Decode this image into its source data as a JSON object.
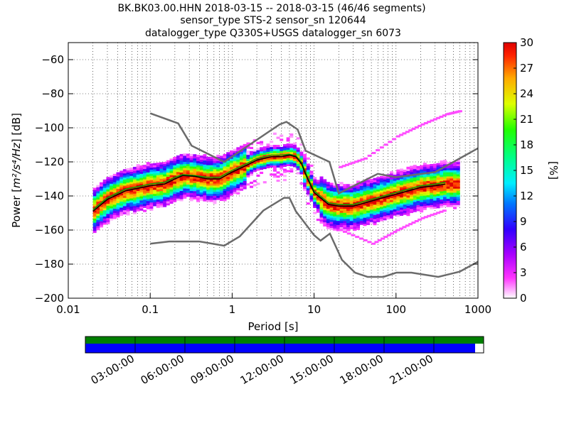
{
  "chart_data": {
    "type": "heatmap",
    "title_lines": [
      "BK.BK03.00.HHN   2018-03-15 -- 2018-03-15  (46/46 segments)",
      "sensor_type STS-2 sensor_sn 120644",
      "datalogger_type Q330S+USGS datalogger_sn 6073"
    ],
    "xlabel_prefix": "Period [s]",
    "ylabel_prefix": "Power [",
    "ylabel_math": "m²/s⁴/Hz",
    "ylabel_suffix": "] [dB]",
    "x_scale": "log",
    "xlim": [
      0.01,
      1000
    ],
    "ylim": [
      -200,
      -50
    ],
    "x_ticks": [
      "0.01",
      "0.1",
      "1",
      "10",
      "100",
      "1000"
    ],
    "y_ticks": [
      "−60",
      "−80",
      "−100",
      "−120",
      "−140",
      "−160",
      "−180",
      "−200"
    ],
    "colorbar": {
      "label": "[%]",
      "range": [
        0,
        30
      ],
      "ticks": [
        "0",
        "3",
        "6",
        "9",
        "12",
        "15",
        "18",
        "21",
        "24",
        "27",
        "30"
      ]
    },
    "nlnm": [
      [
        0.1,
        -168
      ],
      [
        0.17,
        -166.7
      ],
      [
        0.4,
        -166.7
      ],
      [
        0.8,
        -169.2
      ],
      [
        1.24,
        -163.7
      ],
      [
        2.4,
        -148.6
      ],
      [
        4.3,
        -141.1
      ],
      [
        5.0,
        -141.1
      ],
      [
        6.0,
        -149.0
      ],
      [
        10.0,
        -163.0
      ],
      [
        12.0,
        -166.2
      ],
      [
        15.6,
        -162.1
      ],
      [
        21.9,
        -177.5
      ],
      [
        31.6,
        -185.0
      ],
      [
        45.0,
        -187.5
      ],
      [
        70.0,
        -187.5
      ],
      [
        101,
        -185.0
      ],
      [
        154,
        -185.0
      ],
      [
        328,
        -187.5
      ],
      [
        600,
        -184.4
      ],
      [
        1000,
        -178.6
      ]
    ],
    "nhnm": [
      [
        0.1,
        -91.5
      ],
      [
        0.22,
        -97.4
      ],
      [
        0.32,
        -110.5
      ],
      [
        0.8,
        -120.0
      ],
      [
        3.8,
        -98.0
      ],
      [
        4.6,
        -96.5
      ],
      [
        6.3,
        -101.0
      ],
      [
        7.9,
        -113.5
      ],
      [
        15.4,
        -120.0
      ],
      [
        20.0,
        -138.5
      ],
      [
        60,
        -127.0
      ],
      [
        100,
        -129.0
      ],
      [
        300,
        -126.0
      ],
      [
        1000,
        -112.0
      ]
    ],
    "mode_curve": [
      [
        0.02,
        -149
      ],
      [
        0.03,
        -142
      ],
      [
        0.05,
        -137
      ],
      [
        0.08,
        -135
      ],
      [
        0.1,
        -134
      ],
      [
        0.15,
        -133
      ],
      [
        0.2,
        -130
      ],
      [
        0.25,
        -128
      ],
      [
        0.35,
        -128.5
      ],
      [
        0.5,
        -130
      ],
      [
        0.7,
        -130
      ],
      [
        1,
        -126
      ],
      [
        1.5,
        -122
      ],
      [
        2,
        -119
      ],
      [
        3,
        -117
      ],
      [
        4,
        -117
      ],
      [
        5,
        -116
      ],
      [
        6,
        -117
      ],
      [
        7,
        -121
      ],
      [
        8,
        -128
      ],
      [
        10,
        -138
      ],
      [
        15,
        -145
      ],
      [
        20,
        -146
      ],
      [
        30,
        -146
      ],
      [
        50,
        -143
      ],
      [
        70,
        -141
      ],
      [
        100,
        -139
      ],
      [
        200,
        -135
      ],
      [
        300,
        -134
      ],
      [
        400,
        -133
      ]
    ],
    "mean_curve": [
      [
        0.02,
        -148
      ],
      [
        0.03,
        -141
      ],
      [
        0.05,
        -136
      ],
      [
        0.08,
        -134
      ],
      [
        0.1,
        -133
      ],
      [
        0.15,
        -132
      ],
      [
        0.2,
        -129
      ],
      [
        0.25,
        -127.5
      ],
      [
        0.35,
        -128
      ],
      [
        0.5,
        -129
      ],
      [
        0.7,
        -129
      ],
      [
        1,
        -125
      ],
      [
        1.5,
        -121
      ],
      [
        2,
        -118
      ],
      [
        3,
        -116
      ],
      [
        4,
        -116
      ],
      [
        5,
        -115.5
      ],
      [
        6,
        -116.5
      ],
      [
        7,
        -120
      ],
      [
        8,
        -127
      ],
      [
        10,
        -137
      ],
      [
        15,
        -144
      ],
      [
        20,
        -145
      ],
      [
        30,
        -145
      ],
      [
        50,
        -142
      ],
      [
        70,
        -140
      ],
      [
        100,
        -138
      ],
      [
        200,
        -134
      ],
      [
        300,
        -133
      ],
      [
        400,
        -132
      ]
    ],
    "timeline": {
      "data_available": "green",
      "used_segments": "blue",
      "tick_labels": [
        "03:00:00",
        "06:00:00",
        "09:00:00",
        "12:00:00",
        "15:00:00",
        "18:00:00",
        "21:00:00"
      ]
    },
    "colors": {
      "noise_model": "#6b6b6b",
      "mode": "#000000",
      "mean": "#00aa00",
      "timeline_green": "#007f00",
      "timeline_blue": "#0000ff"
    },
    "grid": "dotted"
  }
}
